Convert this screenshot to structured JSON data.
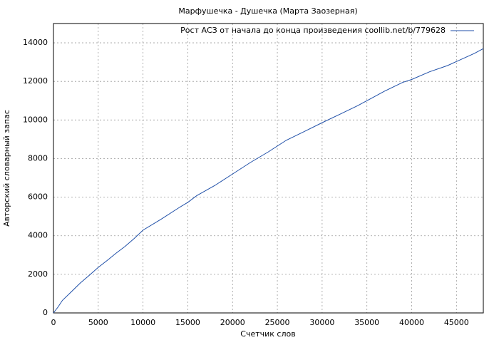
{
  "chart_data": {
    "type": "line",
    "title": "Марфушечка - Душечка (Марта Заозерная)",
    "x_label": "Счетчик слов",
    "y_label": "Авторский словарный запас",
    "xlim": [
      0,
      48000
    ],
    "ylim": [
      0,
      15000
    ],
    "xticks": [
      0,
      5000,
      10000,
      15000,
      20000,
      25000,
      30000,
      35000,
      40000,
      45000
    ],
    "yticks": [
      0,
      2000,
      4000,
      6000,
      8000,
      10000,
      12000,
      14000
    ],
    "grid": true,
    "legend": "upper right",
    "x": [
      0,
      500,
      1000,
      2000,
      3000,
      4000,
      5000,
      6000,
      7000,
      8000,
      9000,
      10000,
      12000,
      14000,
      15000,
      16000,
      18000,
      20000,
      22000,
      24000,
      25000,
      26000,
      28000,
      30000,
      32000,
      34000,
      35000,
      37000,
      39000,
      40000,
      42000,
      44000,
      45000,
      47000,
      48000
    ],
    "series": [
      {
        "name": "Рост АСЗ от начала до конца произведения coollib.net/b/779628",
        "color": "#1f4fa8",
        "values": [
          0,
          300,
          650,
          1100,
          1550,
          1950,
          2360,
          2720,
          3100,
          3450,
          3850,
          4290,
          4850,
          5450,
          5730,
          6080,
          6600,
          7200,
          7800,
          8350,
          8650,
          8950,
          9400,
          9860,
          10300,
          10750,
          11000,
          11500,
          11950,
          12100,
          12500,
          12820,
          13030,
          13450,
          13700
        ]
      }
    ]
  }
}
